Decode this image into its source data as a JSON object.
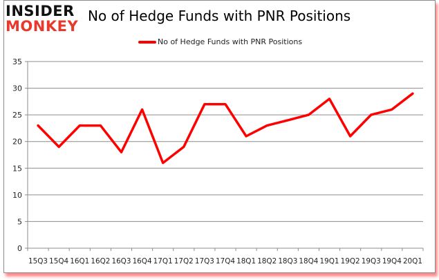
{
  "header": {
    "logo_top": "INSIDER",
    "logo_bottom": "MONKEY",
    "title": "No of Hedge Funds with PNR Positions"
  },
  "legend": {
    "label": "No of Hedge Funds with PNR Positions",
    "color": "#ff0000"
  },
  "chart_data": {
    "type": "line",
    "title": "No of Hedge Funds with PNR Positions",
    "xlabel": "",
    "ylabel": "",
    "categories": [
      "15Q3",
      "15Q4",
      "16Q1",
      "16Q2",
      "16Q3",
      "16Q4",
      "17Q1",
      "17Q2",
      "17Q3",
      "17Q4",
      "18Q1",
      "18Q2",
      "18Q3",
      "18Q4",
      "19Q1",
      "19Q2",
      "19Q3",
      "19Q4",
      "20Q1"
    ],
    "series": [
      {
        "name": "No of Hedge Funds with PNR Positions",
        "color": "#ff0000",
        "values": [
          23,
          19,
          23,
          23,
          18,
          26,
          16,
          19,
          27,
          27,
          21,
          23,
          24,
          25,
          28,
          21,
          25,
          26,
          29
        ]
      }
    ],
    "ylim": [
      0,
      35
    ],
    "yticks": [
      0,
      5,
      10,
      15,
      20,
      25,
      30,
      35
    ],
    "grid": true,
    "legend_position": "top"
  }
}
